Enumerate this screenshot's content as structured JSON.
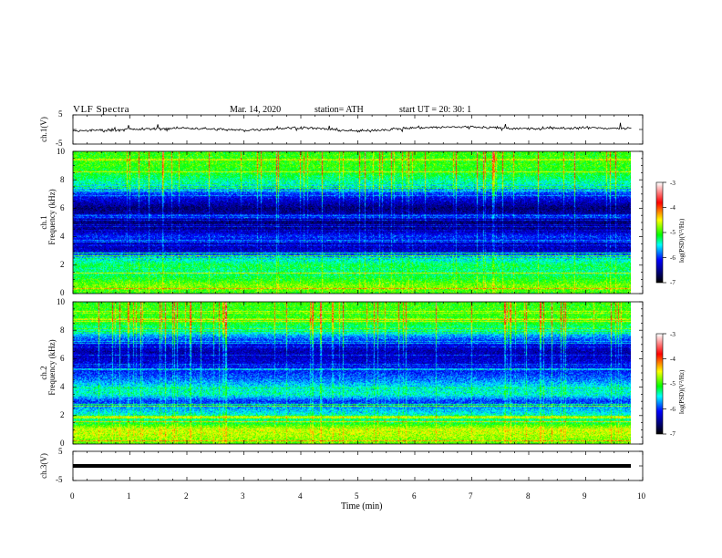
{
  "header": {
    "title": "VLF  Spectra",
    "date": "Mar. 14, 2020",
    "station": "station= ATH",
    "start_ut": "start  UT  =    20: 30: 1"
  },
  "panels": {
    "ch1_wave": {
      "ylabel": "ch.1(V)",
      "ticks": [
        "5",
        "-5"
      ]
    },
    "ch1_spec": {
      "ylabel": "ch.1\nFrequency  (kHz)",
      "ylabel_a": "ch.1",
      "ylabel_b": "Frequency  (kHz)",
      "ticks": [
        "10",
        "8",
        "6",
        "4",
        "2",
        "0"
      ]
    },
    "ch2_spec": {
      "ylabel_a": "ch.2",
      "ylabel_b": "Frequency  (kHz)",
      "ticks": [
        "10",
        "8",
        "6",
        "4",
        "2",
        "0"
      ]
    },
    "ch3_wave": {
      "ylabel": "ch.3(V)",
      "ticks": [
        "5",
        "-5"
      ]
    }
  },
  "xaxis": {
    "label": "Time  (min)",
    "ticks": [
      "0",
      "1",
      "2",
      "3",
      "4",
      "5",
      "6",
      "7",
      "8",
      "9",
      "10"
    ]
  },
  "colorbar": {
    "label": "log(PSD)(V²/Hz)",
    "ticks": [
      "-3",
      "-4",
      "-5",
      "-6",
      "-7"
    ],
    "colors": [
      "#ffffff",
      "#ff0000",
      "#ffff00",
      "#00ff00",
      "#00ffff",
      "#0000ff",
      "#000080",
      "#000000"
    ]
  },
  "chart_data": [
    {
      "type": "line",
      "name": "ch.1 waveform",
      "xlabel": "Time  (min)",
      "ylabel": "ch.1(V)",
      "xlim": [
        0,
        10
      ],
      "ylim": [
        -5,
        5
      ],
      "x": [
        0,
        1,
        2,
        3,
        4,
        5,
        6,
        7,
        8,
        9,
        9.8
      ],
      "y": [
        -0.5,
        0,
        0.5,
        -0.3,
        0.7,
        -0.6,
        0.6,
        0.9,
        0.2,
        0.6,
        0.3
      ],
      "note_levels": "noisy trace around 0 V with spikes of about ±1.5 V"
    },
    {
      "type": "heatmap",
      "name": "ch.1 spectrogram",
      "xlabel": "Time  (min)",
      "ylabel": "Frequency  (kHz)",
      "xlim": [
        0,
        10
      ],
      "ylim": [
        0,
        10
      ],
      "data_end_min": 9.8,
      "zlim": [
        -7,
        -3
      ],
      "zlabel": "log(PSD)(V²/Hz)",
      "freq_khz": [
        0,
        0.5,
        1,
        1.5,
        2,
        2.5,
        3,
        3.5,
        4,
        4.5,
        5,
        5.5,
        6,
        6.5,
        7,
        7.5,
        8,
        8.5,
        9,
        9.5,
        10
      ],
      "mean_log_psd": [
        -5.0,
        -4.8,
        -5.1,
        -5.3,
        -5.2,
        -5.6,
        -6.3,
        -6.4,
        -6.0,
        -6.5,
        -6.6,
        -6.4,
        -6.6,
        -6.3,
        -6.0,
        -5.6,
        -5.3,
        -5.1,
        -5.0,
        -5.0,
        -5.0
      ]
    },
    {
      "type": "heatmap",
      "name": "ch.2 spectrogram",
      "xlabel": "Time  (min)",
      "ylabel": "Frequency  (kHz)",
      "xlim": [
        0,
        10
      ],
      "ylim": [
        0,
        10
      ],
      "data_end_min": 9.8,
      "zlim": [
        -7,
        -3
      ],
      "zlabel": "log(PSD)(V²/Hz)",
      "freq_khz": [
        0,
        0.5,
        1,
        1.5,
        2,
        2.5,
        3,
        3.5,
        4,
        4.5,
        5,
        5.5,
        6,
        6.5,
        7,
        7.5,
        8,
        8.5,
        9,
        9.5,
        10
      ],
      "mean_log_psd": [
        -4.9,
        -4.7,
        -4.6,
        -5.2,
        -5.4,
        -5.7,
        -6.0,
        -5.4,
        -5.5,
        -5.8,
        -6.0,
        -6.2,
        -6.3,
        -6.4,
        -6.2,
        -5.8,
        -5.4,
        -5.1,
        -5.0,
        -5.0,
        -5.0
      ]
    },
    {
      "type": "line",
      "name": "ch.3 waveform",
      "xlabel": "Time  (min)",
      "ylabel": "ch.3(V)",
      "xlim": [
        0,
        10
      ],
      "ylim": [
        -5,
        5
      ],
      "x": [
        0,
        9.8
      ],
      "y": [
        -0.3,
        -0.3
      ]
    }
  ]
}
